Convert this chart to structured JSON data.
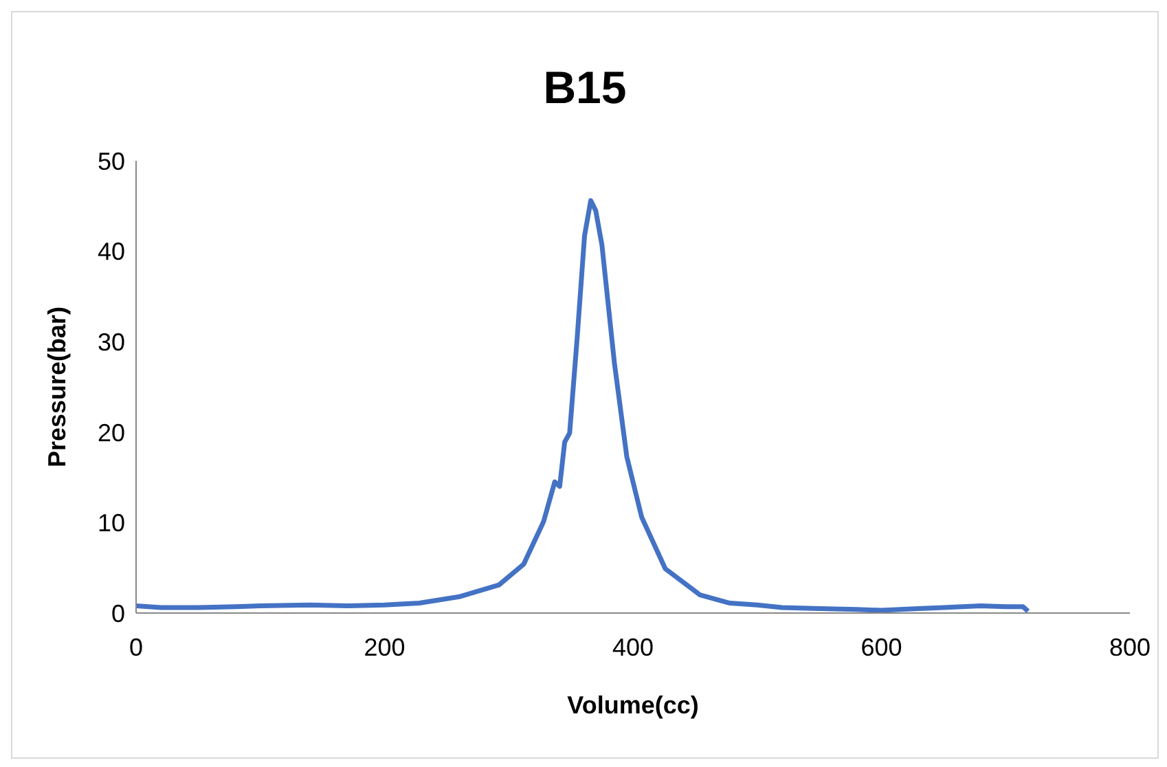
{
  "chart_data": {
    "type": "line",
    "title": "B15",
    "xlabel": "Volume(cc)",
    "ylabel": "Pressure(bar)",
    "series": [
      {
        "color": "#4472c4",
        "x": [
          0,
          20,
          50,
          80,
          100,
          140,
          170,
          200,
          228,
          260,
          292,
          312,
          328,
          337,
          341,
          345,
          349,
          355,
          361,
          366,
          370,
          375,
          385,
          395,
          407,
          426,
          454,
          478,
          500,
          520,
          550,
          580,
          600,
          630,
          650,
          680,
          700,
          714,
          718
        ],
        "values": [
          0.8,
          0.6,
          0.6,
          0.7,
          0.8,
          0.9,
          0.8,
          0.9,
          1.1,
          1.8,
          3.1,
          5.4,
          10.1,
          14.5,
          14.0,
          18.9,
          19.9,
          30.3,
          41.7,
          45.6,
          44.5,
          40.7,
          27.7,
          17.3,
          10.6,
          4.9,
          2.0,
          1.1,
          0.9,
          0.6,
          0.5,
          0.4,
          0.3,
          0.5,
          0.6,
          0.8,
          0.7,
          0.7,
          0.2
        ]
      }
    ],
    "xlim": [
      0,
      800
    ],
    "xticks": [
      0,
      200,
      400,
      600,
      800
    ],
    "ylim": [
      0,
      50
    ],
    "yticks": [
      0,
      10,
      20,
      30,
      40,
      50
    ],
    "grid": false,
    "legend": false,
    "marker": "none",
    "line_style": "solid"
  }
}
